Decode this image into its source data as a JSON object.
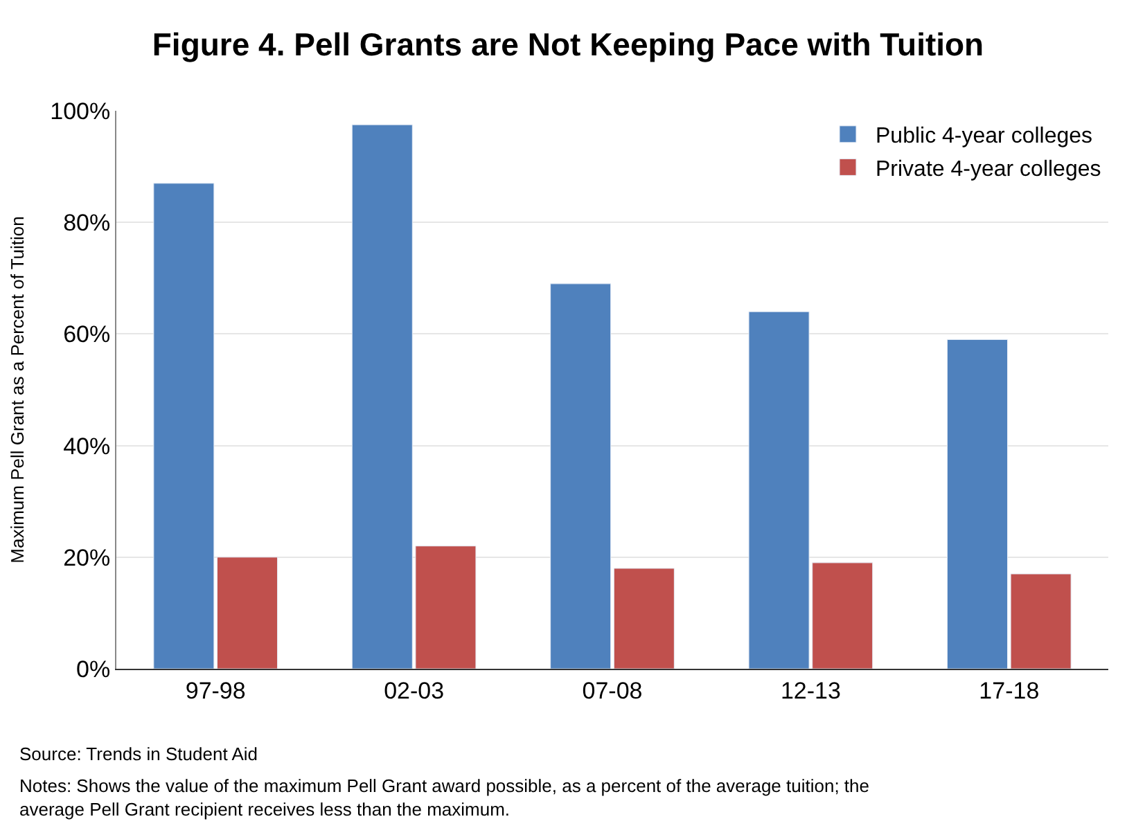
{
  "chart_data": {
    "type": "bar",
    "title": "Figure 4. Pell Grants are Not Keeping Pace with Tuition",
    "ylabel": "Maximum Pell Grant as a Percent of Tuition",
    "categories": [
      "97-98",
      "02-03",
      "07-08",
      "12-13",
      "17-18"
    ],
    "series": [
      {
        "name": "Public 4-year colleges",
        "color": "#4f81bd",
        "values": [
          87,
          97.5,
          69,
          64,
          59
        ]
      },
      {
        "name": "Private 4-year colleges",
        "color": "#c0504d",
        "values": [
          20,
          22,
          18,
          19,
          17
        ]
      }
    ],
    "ylim": [
      0,
      100
    ],
    "yticks": [
      {
        "value": 0,
        "label": "0%"
      },
      {
        "value": 20,
        "label": "20%"
      },
      {
        "value": 40,
        "label": "40%"
      },
      {
        "value": 60,
        "label": "60%"
      },
      {
        "value": 80,
        "label": "80%"
      },
      {
        "value": 100,
        "label": "100%"
      }
    ],
    "grid": "y",
    "legend": "top right",
    "annotations": [
      "Source: Trends in Student Aid",
      "Notes: Shows the value of the maximum Pell Grant award possible, as a percent of the average tuition; the average Pell Grant recipient receives less than the maximum."
    ]
  }
}
